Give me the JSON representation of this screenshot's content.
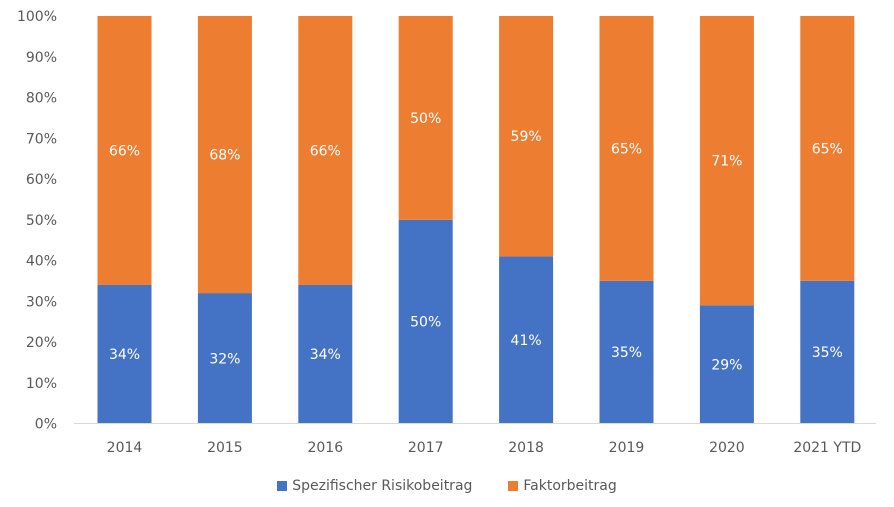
{
  "chart_data": {
    "type": "bar",
    "stacked": true,
    "categories": [
      "2014",
      "2015",
      "2016",
      "2017",
      "2018",
      "2019",
      "2020",
      "2021 YTD"
    ],
    "series": [
      {
        "name": "Spezifischer Risikobeitrag",
        "color": "#4472C4",
        "values": [
          34,
          32,
          34,
          50,
          41,
          35,
          29,
          35
        ],
        "labels": [
          "34%",
          "32%",
          "34%",
          "50%",
          "41%",
          "35%",
          "29%",
          "35%"
        ]
      },
      {
        "name": "Faktorbeitrag",
        "color": "#ED7D31",
        "values": [
          66,
          68,
          66,
          50,
          59,
          65,
          71,
          65
        ],
        "labels": [
          "66%",
          "68%",
          "66%",
          "50%",
          "59%",
          "65%",
          "71%",
          "65%"
        ]
      }
    ],
    "yticks": [
      "0%",
      "10%",
      "20%",
      "30%",
      "40%",
      "50%",
      "60%",
      "70%",
      "80%",
      "90%",
      "100%"
    ],
    "ylim": [
      0,
      100
    ],
    "title": "",
    "xlabel": "",
    "ylabel": "",
    "grid": false,
    "legend_position": "bottom"
  }
}
